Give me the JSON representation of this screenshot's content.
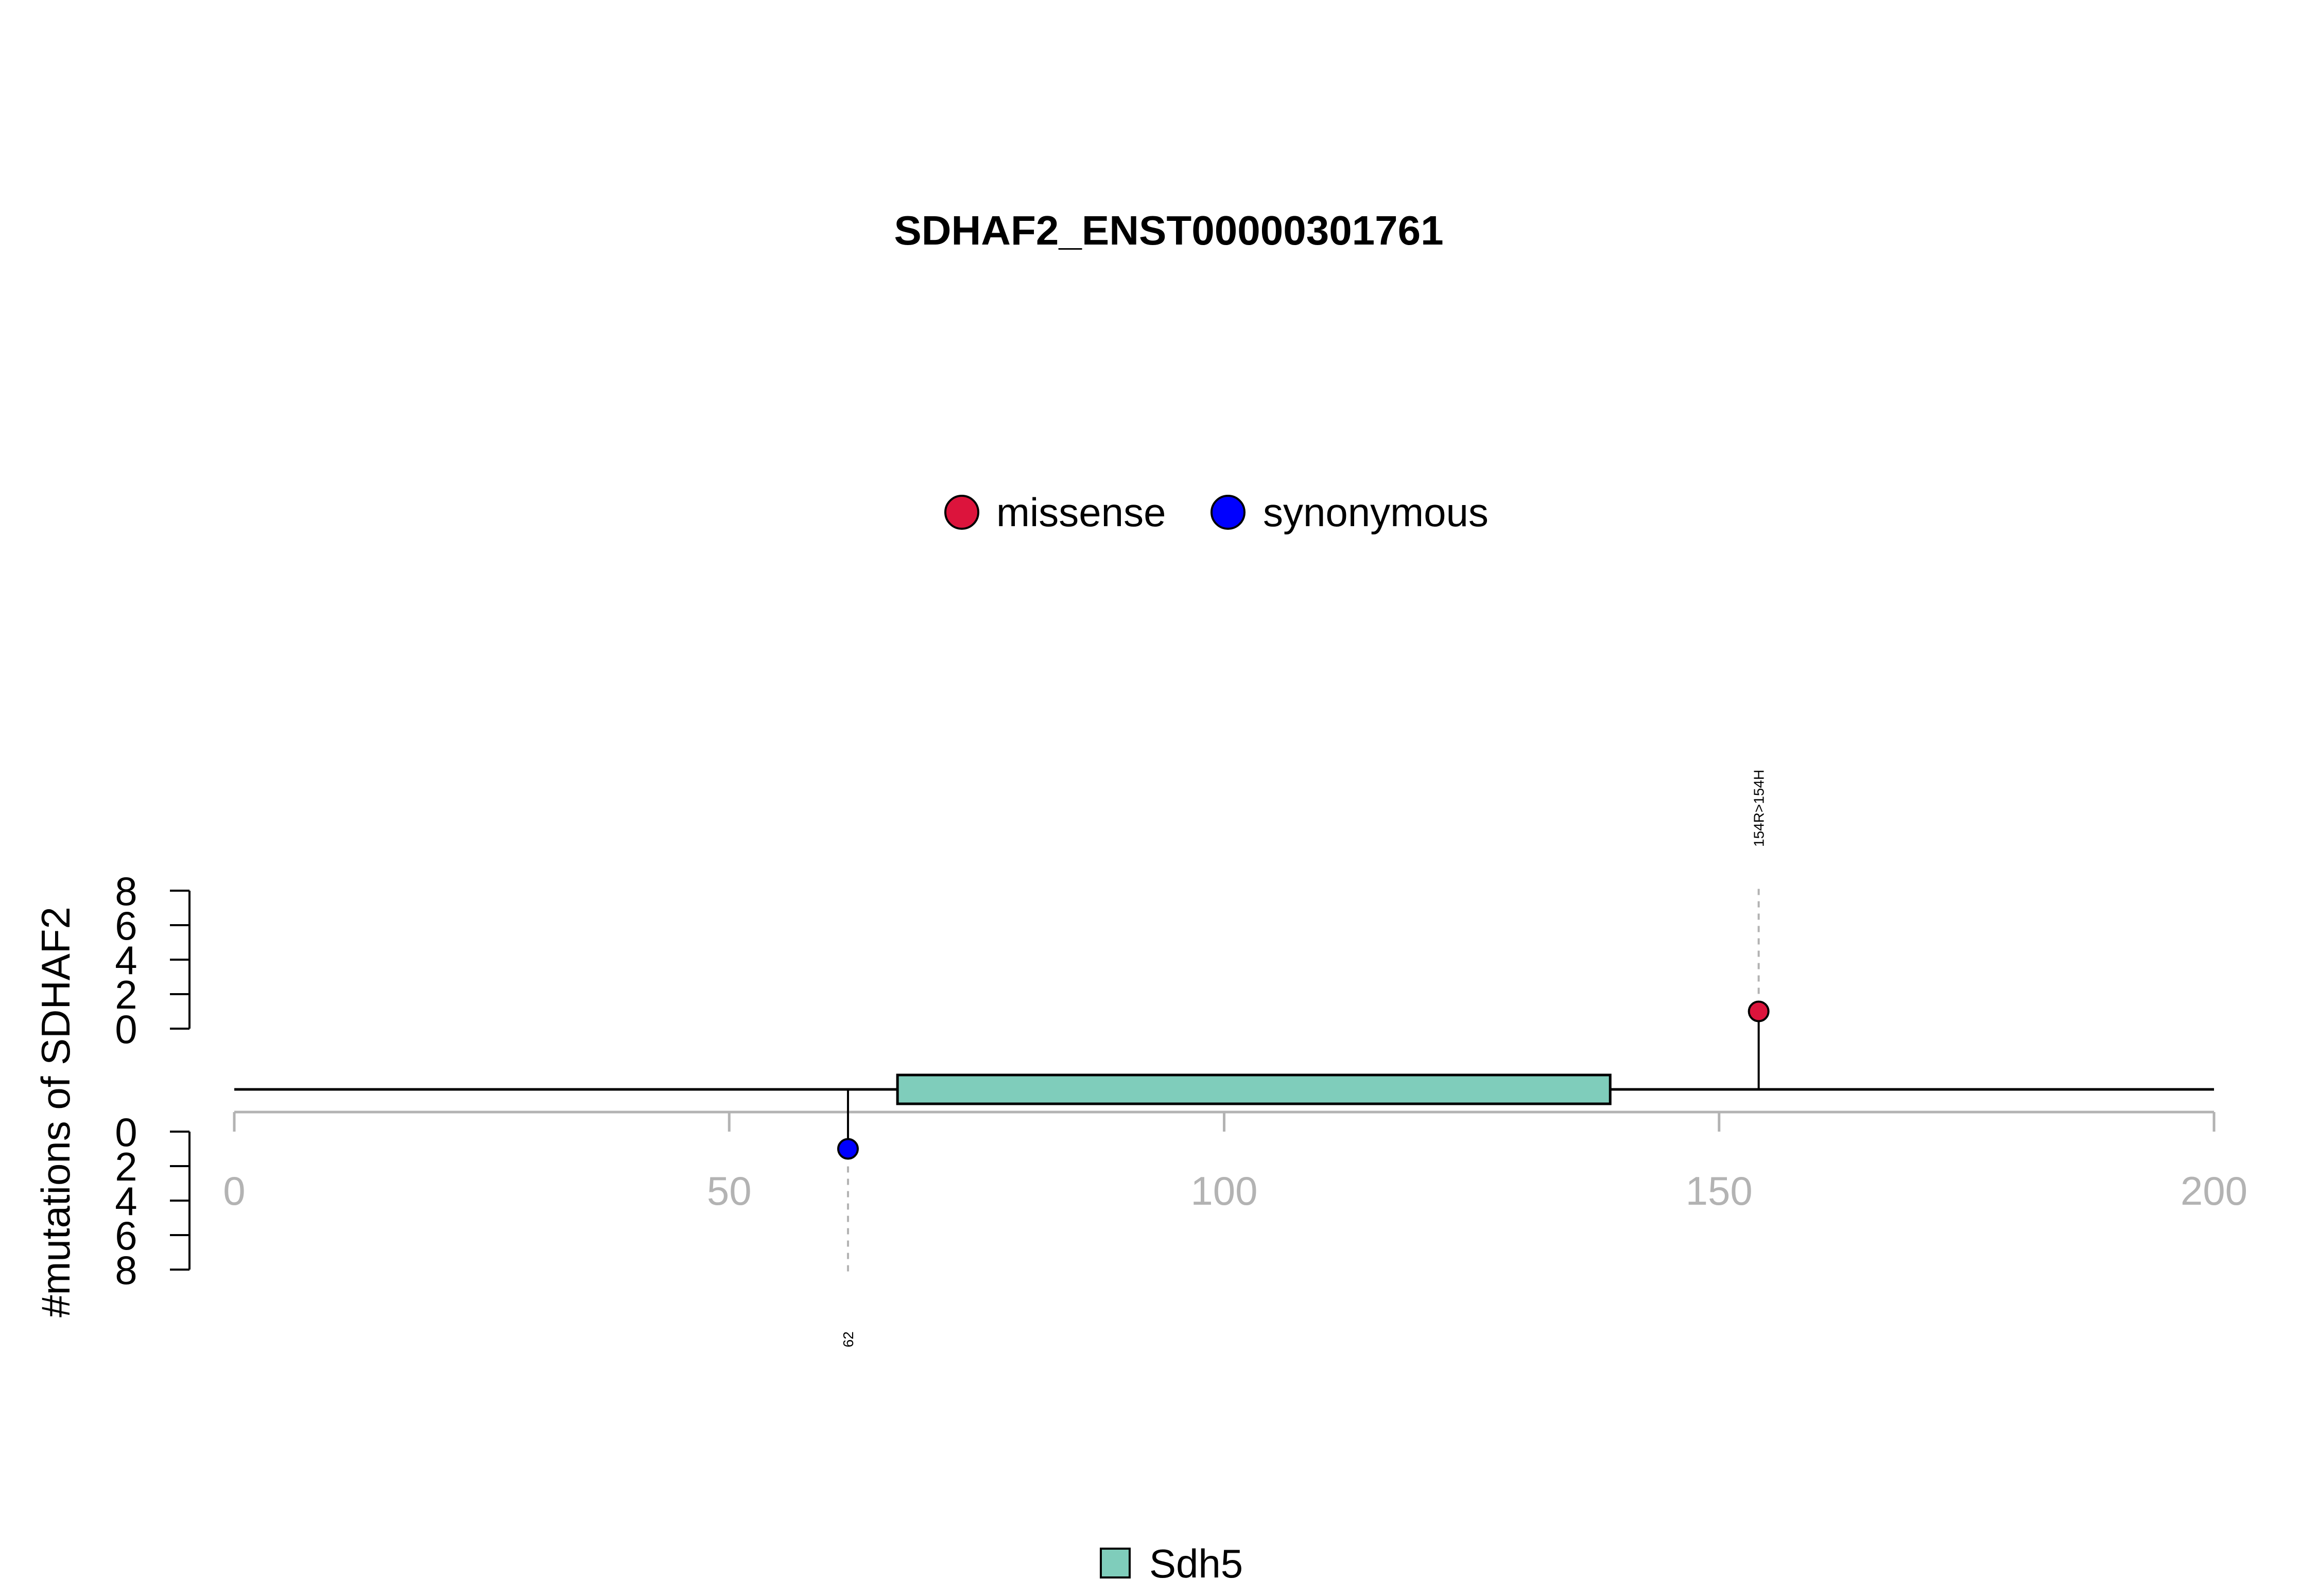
{
  "chart_data": {
    "type": "lollipop",
    "title": "SDHAF2_ENST00000301761",
    "ylabel": "#mutations of SDHAF2",
    "xlim": [
      0,
      200
    ],
    "x_ticks": [
      0,
      50,
      100,
      150,
      200
    ],
    "y_ticks_top": [
      "8",
      "6",
      "4",
      "2",
      "0"
    ],
    "y_ticks_bottom": [
      "0",
      "2",
      "4",
      "6",
      "8"
    ],
    "ylim": [
      0,
      8
    ],
    "legend": [
      {
        "label": "missense",
        "color": "#DC143C"
      },
      {
        "label": "synonymous",
        "color": "#0000FF"
      }
    ],
    "mutations": [
      {
        "position": 154,
        "count": 1,
        "type": "missense",
        "color": "#DC143C",
        "label": "154R>154H",
        "side": "top"
      },
      {
        "position": 62,
        "count": 1,
        "type": "synonymous",
        "color": "#0000FF",
        "label": "62",
        "side": "bottom"
      }
    ],
    "domains": [
      {
        "name": "Sdh5",
        "start": 67,
        "end": 139,
        "color": "#7FCDBB"
      }
    ],
    "domain_legend": [
      {
        "label": "Sdh5",
        "color": "#7FCDBB"
      }
    ]
  }
}
